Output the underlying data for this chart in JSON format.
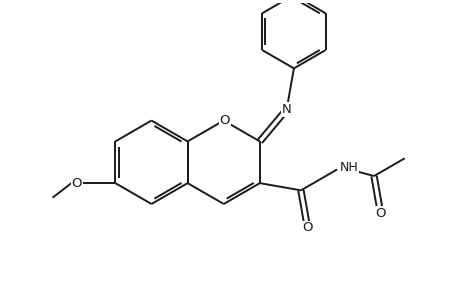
{
  "bg_color": "#ffffff",
  "line_color": "#1a1a1a",
  "line_width": 1.4,
  "figsize": [
    4.6,
    3.0
  ],
  "dpi": 100,
  "xlim": [
    0,
    9.2
  ],
  "ylim": [
    0,
    6.0
  ]
}
